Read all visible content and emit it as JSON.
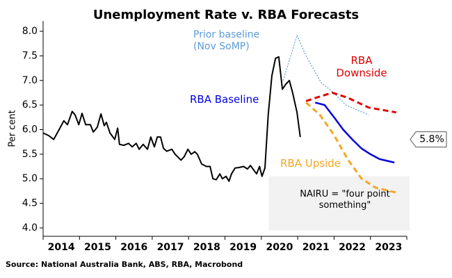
{
  "chart_data": {
    "type": "line",
    "title": "Unemployment Rate v. RBA Forecasts",
    "y_label": "Per cent",
    "source": "Source: National Australia Bank, ABS, RBA, Macrobond",
    "xlim": [
      2014,
      2024
    ],
    "xticks": [
      {
        "value": 2014.5,
        "label": "2014"
      },
      {
        "value": 2015.5,
        "label": "2015"
      },
      {
        "value": 2016.5,
        "label": "2016"
      },
      {
        "value": 2017.5,
        "label": "2017"
      },
      {
        "value": 2018.5,
        "label": "2018"
      },
      {
        "value": 2019.5,
        "label": "2019"
      },
      {
        "value": 2020.5,
        "label": "2020"
      },
      {
        "value": 2021.5,
        "label": "2021"
      },
      {
        "value": 2022.5,
        "label": "2022"
      },
      {
        "value": 2023.5,
        "label": "2023"
      }
    ],
    "ylim": [
      3.83,
      8.15
    ],
    "yticks": [
      {
        "value": 4,
        "label": "4.0"
      },
      {
        "value": 4.5,
        "label": "4.5"
      },
      {
        "value": 5,
        "label": "5.0"
      },
      {
        "value": 5.5,
        "label": "5.5"
      },
      {
        "value": 6,
        "label": "6.0"
      },
      {
        "value": 6.5,
        "label": "6.5"
      },
      {
        "value": 7,
        "label": "7.0"
      },
      {
        "value": 7.5,
        "label": "7.5"
      },
      {
        "value": 8,
        "label": "8.0"
      }
    ],
    "series": [
      {
        "color": "#000000",
        "style": "solid",
        "x": [
          2014.0,
          2014.15,
          2014.29,
          2014.44,
          2014.57,
          2014.67,
          2014.8,
          2014.88,
          2014.98,
          2015.07,
          2015.17,
          2015.3,
          2015.38,
          2015.49,
          2015.59,
          2015.68,
          2015.74,
          2015.84,
          2015.97,
          2016.05,
          2016.1,
          2016.22,
          2016.35,
          2016.45,
          2016.56,
          2016.64,
          2016.75,
          2016.87,
          2016.96,
          2017.06,
          2017.14,
          2017.23,
          2017.31,
          2017.4,
          2017.54,
          2017.63,
          2017.79,
          2017.88,
          2017.98,
          2018.07,
          2018.17,
          2018.24,
          2018.36,
          2018.49,
          2018.59,
          2018.67,
          2018.76,
          2018.86,
          2018.93,
          2019.03,
          2019.11,
          2019.18,
          2019.28,
          2019.39,
          2019.51,
          2019.62,
          2019.7,
          2019.77,
          2019.87,
          2019.95,
          2020.02,
          2020.1,
          2020.19,
          2020.29,
          2020.39,
          2020.48,
          2020.58,
          2020.67,
          2020.77,
          2020.86,
          2020.98,
          2021.07
        ],
        "values": [
          5.93,
          5.88,
          5.8,
          6.0,
          6.18,
          6.1,
          6.37,
          6.3,
          6.1,
          6.33,
          6.1,
          6.1,
          5.95,
          6.05,
          6.32,
          6.08,
          6.15,
          5.93,
          5.8,
          6.03,
          5.7,
          5.68,
          5.72,
          5.65,
          5.72,
          5.6,
          5.7,
          5.6,
          5.85,
          5.65,
          5.85,
          5.85,
          5.62,
          5.56,
          5.6,
          5.5,
          5.38,
          5.45,
          5.6,
          5.5,
          5.55,
          5.5,
          5.3,
          5.25,
          5.25,
          5.0,
          4.98,
          5.1,
          5.0,
          5.05,
          4.95,
          5.1,
          5.22,
          5.23,
          5.25,
          5.2,
          5.27,
          5.2,
          5.1,
          5.25,
          5.05,
          5.22,
          6.3,
          7.1,
          7.45,
          7.48,
          6.82,
          6.92,
          7.0,
          6.75,
          6.35,
          5.85
        ]
      },
      {
        "name": "Prior baseline (Nov SoMP)",
        "color": "#5b9bd5",
        "style": "dotted",
        "x": [
          2020.6,
          2020.98,
          2021.23,
          2021.65,
          2021.99,
          2022.32,
          2022.95
        ],
        "values": [
          7.0,
          7.92,
          7.5,
          6.95,
          6.75,
          6.5,
          6.3
        ]
      },
      {
        "name": "RBA Baseline",
        "color": "#0000e0",
        "style": "solid",
        "x": [
          2021.48,
          2021.74,
          2022.0,
          2022.25,
          2022.5,
          2022.75,
          2023.0,
          2023.25,
          2023.66
        ],
        "values": [
          6.55,
          6.5,
          6.25,
          6.0,
          5.8,
          5.62,
          5.5,
          5.4,
          5.33
        ]
      },
      {
        "name": "RBA Downside",
        "color": "#e00000",
        "style": "dashed",
        "x": [
          2021.23,
          2021.51,
          2021.95,
          2022.37,
          2022.95,
          2023.71
        ],
        "values": [
          6.58,
          6.65,
          6.75,
          6.65,
          6.45,
          6.35
        ]
      },
      {
        "name": "RBA Upside",
        "color": "#f5a623",
        "style": "dashed",
        "x": [
          2021.23,
          2021.61,
          2021.99,
          2022.37,
          2022.76,
          2023.14,
          2023.71
        ],
        "values": [
          6.55,
          6.3,
          5.9,
          5.4,
          5.0,
          4.82,
          4.72
        ]
      }
    ],
    "band": {
      "xlim": [
        2020.2,
        2024
      ],
      "ylim": [
        3.95,
        5.05
      ],
      "color": "#f2f2f2",
      "label": "NAIRU = \"four point something\""
    },
    "callout": {
      "value": 5.8,
      "label": "5.8%"
    }
  }
}
